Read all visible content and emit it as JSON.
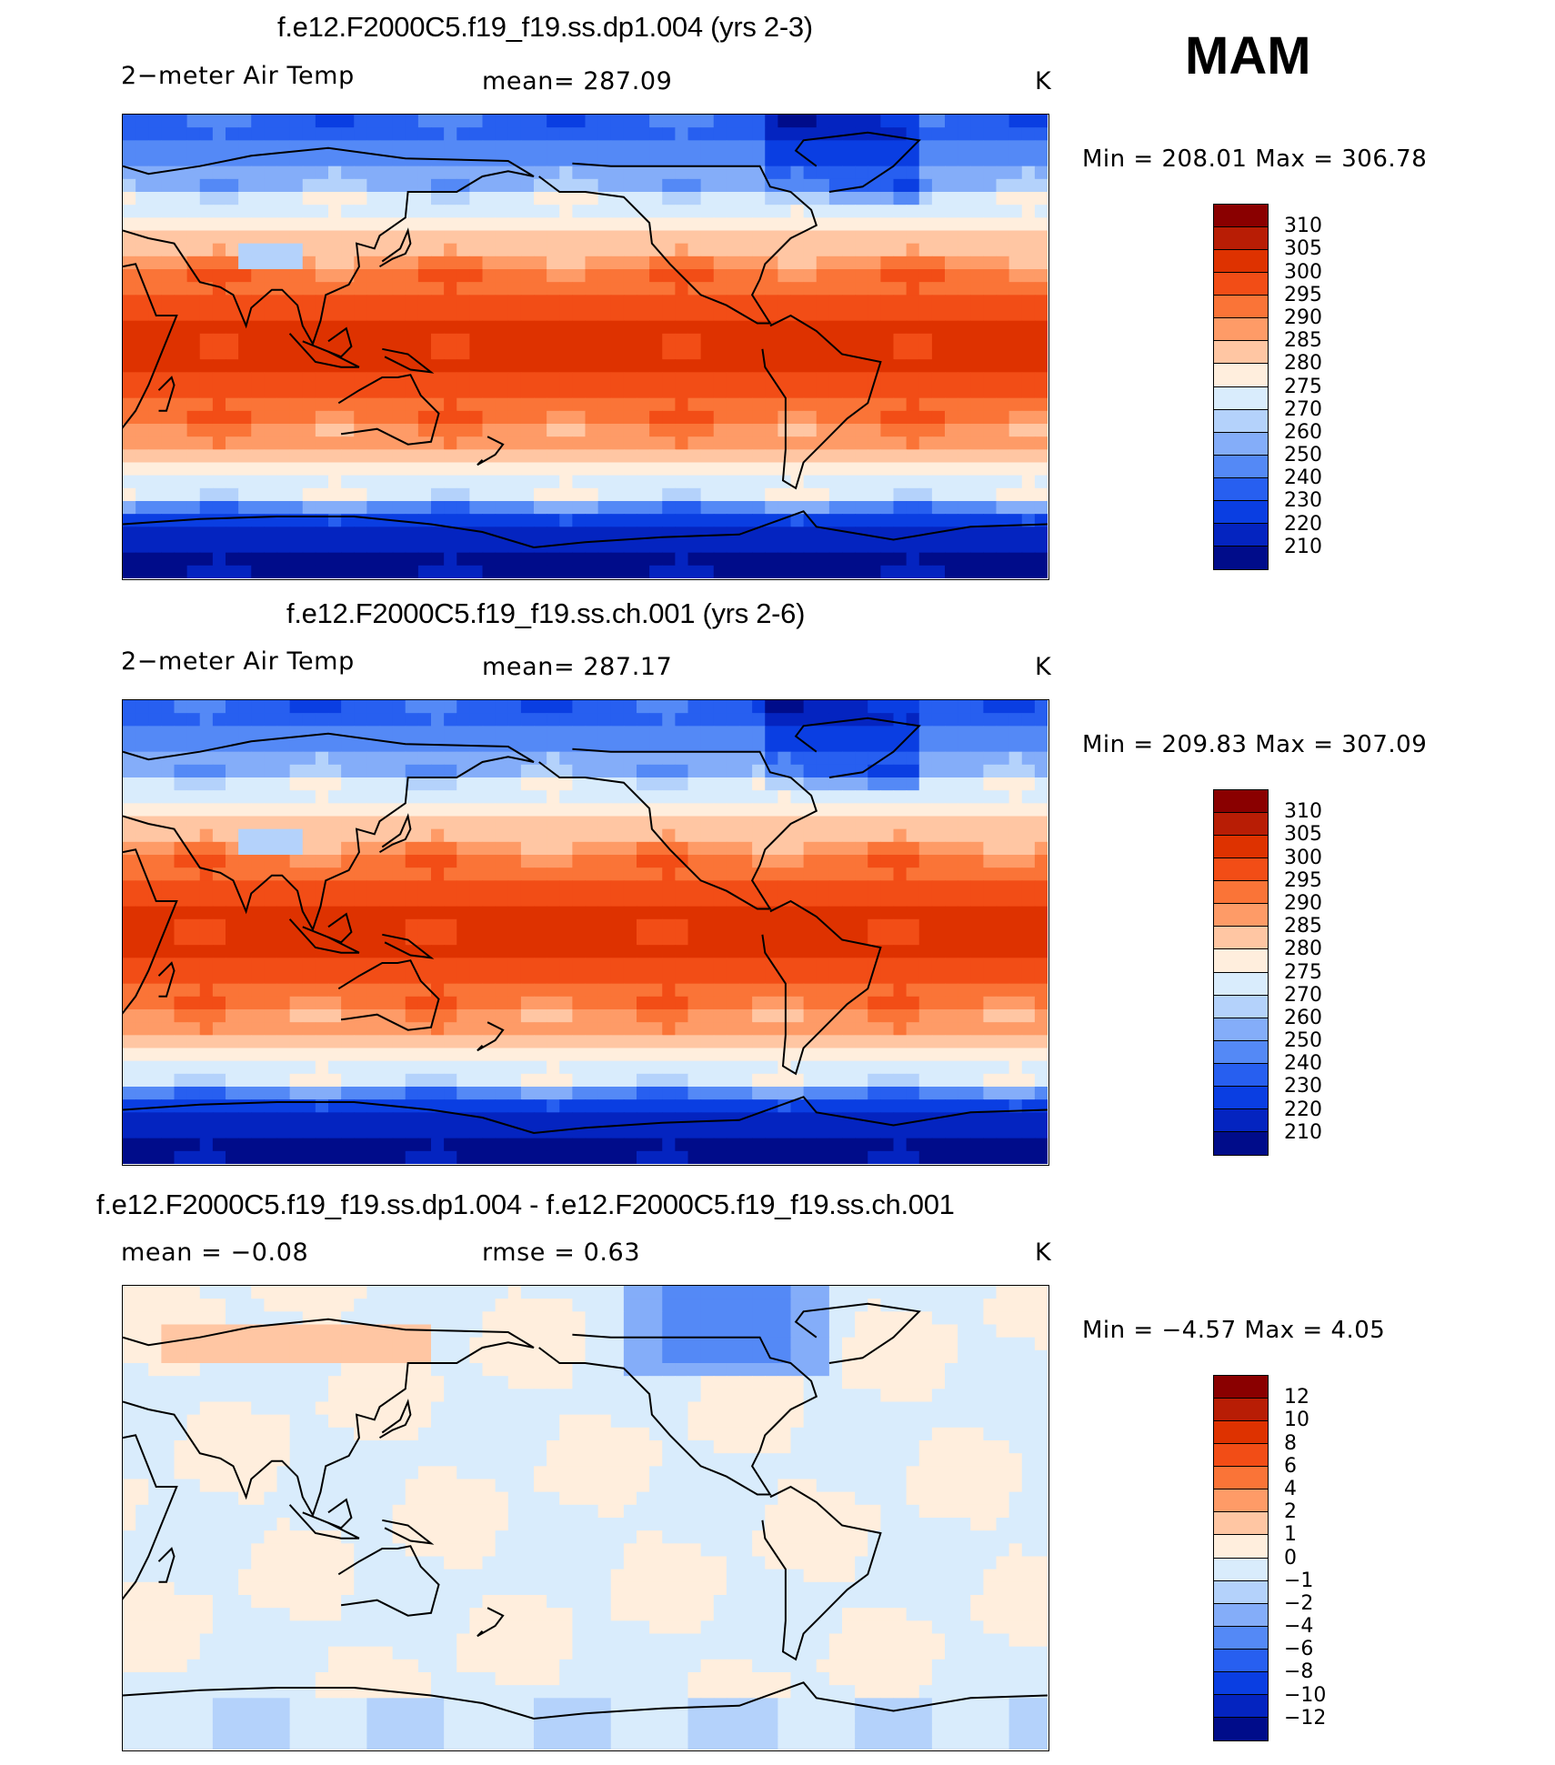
{
  "season": "MAM",
  "panels": [
    {
      "title": "f.e12.F2000C5.f19_f19.ss.dp1.004 (yrs 2-3)",
      "left_label": "2−meter Air Temp",
      "mid_label": "mean=  287.09",
      "units": "K",
      "minmax": "Min  =  208.01  Max  =  306.78",
      "colorbar": {
        "colors": [
          "#8a0000",
          "#b81d05",
          "#de3200",
          "#f24d16",
          "#fa7437",
          "#fe9b67",
          "#ffc6a3",
          "#ffeedd",
          "#d9ecfc",
          "#b4d2fb",
          "#84adf9",
          "#5489f6",
          "#275ff0",
          "#0a3ee2",
          "#0424c0",
          "#000c8a"
        ],
        "labels": [
          "310",
          "305",
          "300",
          "295",
          "290",
          "285",
          "280",
          "275",
          "270",
          "260",
          "250",
          "240",
          "230",
          "220",
          "210"
        ]
      },
      "field": "temp_a"
    },
    {
      "title": "f.e12.F2000C5.f19_f19.ss.ch.001 (yrs 2-6)",
      "left_label": "2−meter Air Temp",
      "mid_label": "mean=  287.17",
      "units": "K",
      "minmax": "Min  =  209.83  Max  =  307.09",
      "colorbar": {
        "colors": [
          "#8a0000",
          "#b81d05",
          "#de3200",
          "#f24d16",
          "#fa7437",
          "#fe9b67",
          "#ffc6a3",
          "#ffeedd",
          "#d9ecfc",
          "#b4d2fb",
          "#84adf9",
          "#5489f6",
          "#275ff0",
          "#0a3ee2",
          "#0424c0",
          "#000c8a"
        ],
        "labels": [
          "310",
          "305",
          "300",
          "295",
          "290",
          "285",
          "280",
          "275",
          "270",
          "260",
          "250",
          "240",
          "230",
          "220",
          "210"
        ]
      },
      "field": "temp_b"
    },
    {
      "title": "f.e12.F2000C5.f19_f19.ss.dp1.004 - f.e12.F2000C5.f19_f19.ss.ch.001",
      "left_label": "mean  =    −0.08",
      "mid_label": "rmse  =     0.63",
      "units": "K",
      "minmax": "Min  =    −4.57  Max  =     4.05",
      "colorbar": {
        "colors": [
          "#8a0000",
          "#b81d05",
          "#de3200",
          "#f24d16",
          "#fa7437",
          "#fe9b67",
          "#ffc6a3",
          "#ffeedd",
          "#d9ecfc",
          "#b4d2fb",
          "#84adf9",
          "#5489f6",
          "#275ff0",
          "#0a3ee2",
          "#0424c0",
          "#000c8a"
        ],
        "labels": [
          "12",
          "10",
          "8",
          "6",
          "4",
          "2",
          "1",
          "0",
          "−1",
          "−2",
          "−4",
          "−6",
          "−8",
          "−10",
          "−12"
        ]
      },
      "field": "diff"
    }
  ],
  "chart_data": {
    "type": "heatmap",
    "description_variable": "2-meter Air Temp",
    "season": "MAM",
    "maps": [
      {
        "title": "f.e12.F2000C5.f19_f19.ss.dp1.004 (yrs 2-3)",
        "units": "K",
        "mean": 287.09,
        "min": 208.01,
        "max": 306.78,
        "contour_levels": [
          210,
          220,
          230,
          240,
          250,
          260,
          270,
          275,
          280,
          285,
          290,
          295,
          300,
          305,
          310
        ]
      },
      {
        "title": "f.e12.F2000C5.f19_f19.ss.ch.001 (yrs 2-6)",
        "units": "K",
        "mean": 287.17,
        "min": 209.83,
        "max": 307.09,
        "contour_levels": [
          210,
          220,
          230,
          240,
          250,
          260,
          270,
          275,
          280,
          285,
          290,
          295,
          300,
          305,
          310
        ]
      },
      {
        "title": "f.e12.F2000C5.f19_f19.ss.dp1.004 - f.e12.F2000C5.f19_f19.ss.ch.001",
        "units": "K",
        "mean": -0.08,
        "rmse": 0.63,
        "min": -4.57,
        "max": 4.05,
        "contour_levels": [
          -12,
          -10,
          -8,
          -6,
          -4,
          -2,
          -1,
          0,
          1,
          2,
          4,
          6,
          8,
          10,
          12
        ]
      }
    ]
  }
}
